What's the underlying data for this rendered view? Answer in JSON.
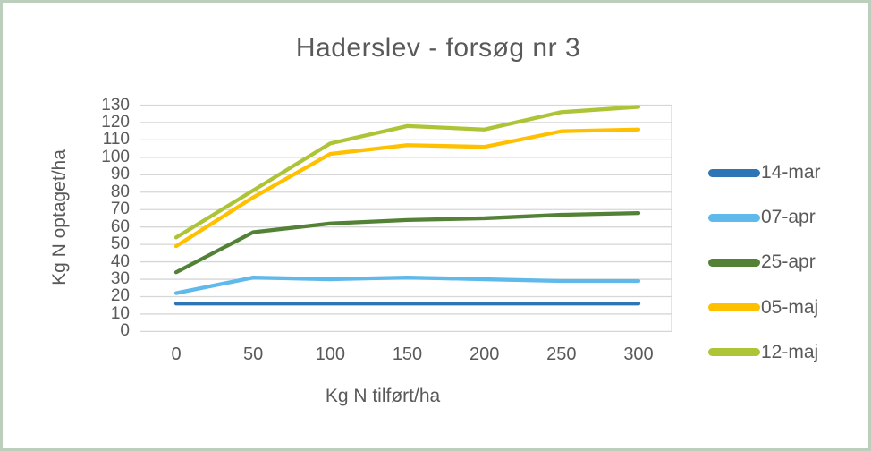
{
  "page": {
    "background_color": "#FFFFFF",
    "frame_border_color": "#BCCFBD",
    "text_color": "#595959",
    "gridline_color": "#D6D6D6"
  },
  "chart_data": {
    "type": "line",
    "title": "Haderslev - forsøg nr 3",
    "xlabel": "Kg N tilført/ha",
    "ylabel": "Kg N optaget/ha",
    "x": [
      0,
      50,
      100,
      150,
      200,
      250,
      300
    ],
    "xticks": [
      0,
      50,
      100,
      150,
      200,
      250,
      300
    ],
    "xlim": [
      0,
      300
    ],
    "ylim": [
      0,
      130
    ],
    "yticks": [
      0,
      10,
      20,
      30,
      40,
      50,
      60,
      70,
      80,
      90,
      100,
      110,
      120,
      130
    ],
    "grid": "horizontal",
    "legend_position": "right",
    "series": [
      {
        "name": "14-mar",
        "color": "#2E75B6",
        "values": [
          16,
          16,
          16,
          16,
          16,
          16,
          16
        ]
      },
      {
        "name": "07-apr",
        "color": "#5FB9EA",
        "values": [
          22,
          31,
          30,
          31,
          30,
          29,
          29
        ]
      },
      {
        "name": "25-apr",
        "color": "#538135",
        "values": [
          34,
          57,
          62,
          64,
          65,
          67,
          68
        ]
      },
      {
        "name": "05-maj",
        "color": "#FFC000",
        "values": [
          49,
          77,
          102,
          107,
          106,
          115,
          116
        ]
      },
      {
        "name": "12-maj",
        "color": "#AEC437",
        "values": [
          54,
          81,
          108,
          118,
          116,
          126,
          129
        ]
      }
    ]
  }
}
